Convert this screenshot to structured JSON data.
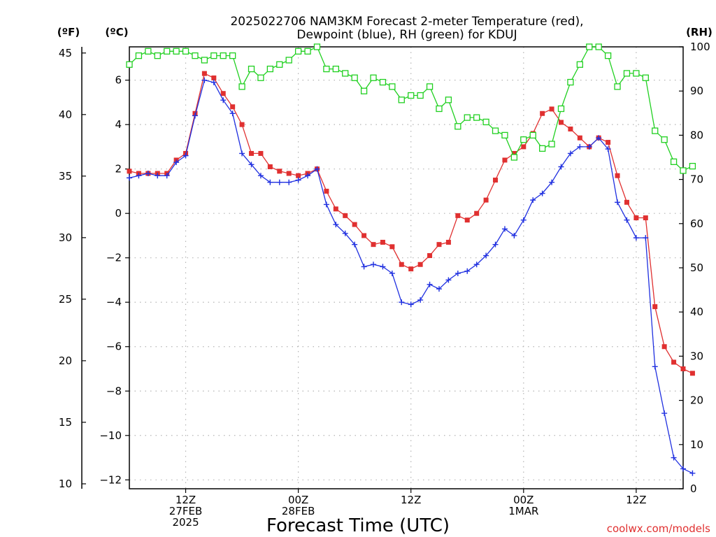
{
  "chart_data": {
    "type": "line",
    "title_lines": [
      "2025022706 NAM3KM Forecast 2-meter Temperature (red),",
      "Dewpoint (blue), RH (green) for KDUJ"
    ],
    "xlabel": "Forecast Time (UTC)",
    "credit": "coolwx.com/models",
    "units": {
      "fahrenheit": "(ºF)",
      "celsius": "(ºC)",
      "rh": "(RH)"
    },
    "x_unit": "forecast hour",
    "xlim": [
      0,
      59
    ],
    "x_ticks": [
      {
        "x": 6,
        "lines": [
          "12Z",
          "27FEB",
          "2025"
        ]
      },
      {
        "x": 18,
        "lines": [
          "00Z",
          "28FEB"
        ]
      },
      {
        "x": 30,
        "lines": [
          "12Z"
        ]
      },
      {
        "x": 42,
        "lines": [
          "00Z",
          "1MAR"
        ]
      },
      {
        "x": 54,
        "lines": [
          "12Z"
        ]
      }
    ],
    "y_left_f": {
      "lim": [
        9.6,
        45.5
      ],
      "ticks": [
        10,
        15,
        20,
        25,
        30,
        35,
        40,
        45
      ]
    },
    "y_left_c": {
      "lim": [
        -12.4,
        7.5
      ],
      "ticks": [
        -12,
        -10,
        -8,
        -6,
        -4,
        -2,
        0,
        2,
        4,
        6
      ]
    },
    "y_right_rh": {
      "lim": [
        0,
        100
      ],
      "ticks": [
        0,
        10,
        20,
        30,
        40,
        50,
        60,
        70,
        80,
        90,
        100
      ]
    },
    "grid": true,
    "series": [
      {
        "name": "Temperature",
        "color": "#e03030",
        "marker": "square-filled",
        "axis": "celsius",
        "values": [
          1.9,
          1.8,
          1.8,
          1.8,
          1.8,
          2.4,
          2.7,
          4.5,
          6.3,
          6.1,
          5.4,
          4.8,
          4.0,
          2.7,
          2.7,
          2.1,
          1.9,
          1.8,
          1.7,
          1.8,
          2.0,
          1.0,
          0.2,
          -0.1,
          -0.5,
          -1.0,
          -1.4,
          -1.3,
          -1.5,
          -2.3,
          -2.5,
          -2.3,
          -1.9,
          -1.4,
          -1.3,
          -0.1,
          -0.3,
          0.0,
          0.6,
          1.5,
          2.4,
          2.7,
          3.0,
          3.6,
          4.5,
          4.7,
          4.1,
          3.8,
          3.4,
          3.0,
          3.4,
          3.2,
          1.7,
          0.5,
          -0.2,
          -0.2,
          -4.2,
          -6.0,
          -6.7,
          -7.0,
          -7.2
        ]
      },
      {
        "name": "Dewpoint",
        "color": "#2030e0",
        "marker": "plus",
        "axis": "celsius",
        "values": [
          1.6,
          1.7,
          1.8,
          1.7,
          1.7,
          2.3,
          2.6,
          4.4,
          6.0,
          5.9,
          5.1,
          4.5,
          2.7,
          2.2,
          1.7,
          1.4,
          1.4,
          1.4,
          1.5,
          1.7,
          2.0,
          0.4,
          -0.5,
          -0.9,
          -1.4,
          -2.4,
          -2.3,
          -2.4,
          -2.7,
          -4.0,
          -4.1,
          -3.9,
          -3.2,
          -3.4,
          -3.0,
          -2.7,
          -2.6,
          -2.3,
          -1.9,
          -1.4,
          -0.7,
          -1.0,
          -0.3,
          0.6,
          0.9,
          1.4,
          2.1,
          2.7,
          3.0,
          3.0,
          3.4,
          2.9,
          0.5,
          -0.3,
          -1.1,
          -1.1,
          -6.9,
          -9.0,
          -11.0,
          -11.5,
          -11.7
        ]
      },
      {
        "name": "RH",
        "color": "#20d020",
        "marker": "square-open",
        "axis": "rh",
        "values": [
          96,
          98,
          99,
          98,
          99,
          99,
          99,
          98,
          97,
          98,
          98,
          98,
          91,
          95,
          93,
          95,
          96,
          97,
          99,
          99,
          100,
          95,
          95,
          94,
          93,
          90,
          93,
          92,
          91,
          88,
          89,
          89,
          91,
          86,
          88,
          82,
          84,
          84,
          83,
          81,
          80,
          75,
          79,
          80,
          77,
          78,
          86,
          92,
          96,
          100,
          100,
          98,
          91,
          94,
          94,
          93,
          81,
          79,
          74,
          72,
          73
        ]
      }
    ]
  }
}
